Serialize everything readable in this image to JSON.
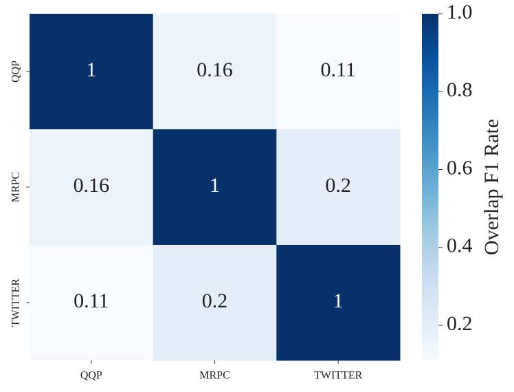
{
  "chart_data": {
    "type": "heatmap",
    "x_categories": [
      "QQP",
      "MRPC",
      "TWITTER"
    ],
    "y_categories": [
      "QQP",
      "MRPC",
      "TWITTER"
    ],
    "values": [
      [
        1,
        0.16,
        0.11
      ],
      [
        0.16,
        1,
        0.2
      ],
      [
        0.11,
        0.2,
        1
      ]
    ],
    "colormap": "Blues",
    "colorbar": {
      "label": "Overlap F1 Rate",
      "lim": [
        0.11,
        1
      ],
      "ticks": [
        0.2,
        0.4,
        0.6,
        0.8,
        {
          "value": 1,
          "label": "1.0"
        }
      ]
    }
  }
}
